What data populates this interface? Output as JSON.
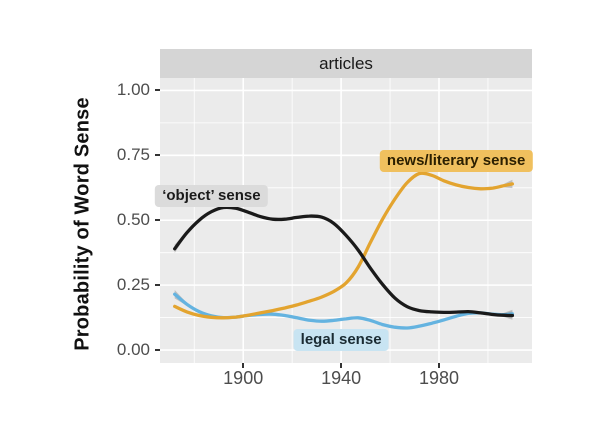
{
  "figure": {
    "facet_title": "articles",
    "y_axis_title": "Probability of Word Sense"
  },
  "colors": {
    "panel_bg": "#EBEBEB",
    "strip_bg": "#D5D5D5",
    "grid": "#FFFFFF",
    "tick_text": "#4D4D4D",
    "se_ribbon": "#9A9A9A"
  },
  "chart_data": {
    "type": "line",
    "title": "articles",
    "xlabel": "",
    "ylabel": "Probability of Word Sense",
    "xlim": [
      1866,
      2018
    ],
    "ylim": [
      -0.05,
      1.048
    ],
    "grid": "on",
    "legend": "direct-labels",
    "x_major_ticks": [
      1900,
      1940,
      1980
    ],
    "x_major_labels": [
      "1900",
      "1940",
      "1980"
    ],
    "x_minor_ticks": [
      1880,
      1920,
      1960,
      2000
    ],
    "y_major_ticks": [
      0,
      0.25,
      0.5,
      0.75,
      1.0
    ],
    "y_major_labels": [
      "0.00",
      "0.25",
      "0.50",
      "0.75",
      "1.00"
    ],
    "y_minor_ticks": [
      0.125,
      0.375,
      0.625,
      0.875
    ],
    "series": [
      {
        "name": "legal sense",
        "color": "#64B3E0",
        "se_start": true,
        "se_end": true,
        "points": [
          [
            1872,
            0.215
          ],
          [
            1877,
            0.176
          ],
          [
            1882,
            0.148
          ],
          [
            1887,
            0.132
          ],
          [
            1892,
            0.125
          ],
          [
            1897,
            0.127
          ],
          [
            1902,
            0.133
          ],
          [
            1907,
            0.137
          ],
          [
            1912,
            0.138
          ],
          [
            1917,
            0.133
          ],
          [
            1922,
            0.124
          ],
          [
            1927,
            0.115
          ],
          [
            1932,
            0.111
          ],
          [
            1937,
            0.114
          ],
          [
            1942,
            0.12
          ],
          [
            1947,
            0.124
          ],
          [
            1952,
            0.114
          ],
          [
            1957,
            0.098
          ],
          [
            1962,
            0.088
          ],
          [
            1967,
            0.085
          ],
          [
            1972,
            0.092
          ],
          [
            1977,
            0.103
          ],
          [
            1982,
            0.116
          ],
          [
            1987,
            0.13
          ],
          [
            1992,
            0.141
          ],
          [
            1997,
            0.143
          ],
          [
            2002,
            0.138
          ],
          [
            2006,
            0.136
          ],
          [
            2010,
            0.139
          ]
        ]
      },
      {
        "name": "news/literary sense",
        "color": "#E3A42F",
        "se_start": false,
        "se_end": true,
        "points": [
          [
            1872,
            0.168
          ],
          [
            1877,
            0.147
          ],
          [
            1882,
            0.133
          ],
          [
            1887,
            0.126
          ],
          [
            1892,
            0.124
          ],
          [
            1897,
            0.127
          ],
          [
            1902,
            0.134
          ],
          [
            1907,
            0.143
          ],
          [
            1912,
            0.152
          ],
          [
            1917,
            0.162
          ],
          [
            1922,
            0.174
          ],
          [
            1927,
            0.188
          ],
          [
            1932,
            0.204
          ],
          [
            1937,
            0.226
          ],
          [
            1942,
            0.258
          ],
          [
            1947,
            0.32
          ],
          [
            1952,
            0.415
          ],
          [
            1957,
            0.505
          ],
          [
            1962,
            0.582
          ],
          [
            1967,
            0.645
          ],
          [
            1972,
            0.68
          ],
          [
            1977,
            0.673
          ],
          [
            1982,
            0.652
          ],
          [
            1987,
            0.636
          ],
          [
            1992,
            0.626
          ],
          [
            1997,
            0.621
          ],
          [
            2002,
            0.624
          ],
          [
            2006,
            0.632
          ],
          [
            2010,
            0.64
          ]
        ]
      },
      {
        "name": "'object' sense",
        "color": "#1A1A1A",
        "se_start": true,
        "se_end": true,
        "points": [
          [
            1872,
            0.39
          ],
          [
            1877,
            0.452
          ],
          [
            1882,
            0.5
          ],
          [
            1887,
            0.533
          ],
          [
            1892,
            0.549
          ],
          [
            1897,
            0.546
          ],
          [
            1902,
            0.531
          ],
          [
            1907,
            0.514
          ],
          [
            1912,
            0.504
          ],
          [
            1917,
            0.504
          ],
          [
            1922,
            0.511
          ],
          [
            1927,
            0.516
          ],
          [
            1932,
            0.512
          ],
          [
            1937,
            0.488
          ],
          [
            1942,
            0.442
          ],
          [
            1947,
            0.385
          ],
          [
            1952,
            0.315
          ],
          [
            1957,
            0.252
          ],
          [
            1962,
            0.2
          ],
          [
            1967,
            0.167
          ],
          [
            1972,
            0.152
          ],
          [
            1977,
            0.147
          ],
          [
            1982,
            0.145
          ],
          [
            1987,
            0.146
          ],
          [
            1992,
            0.148
          ],
          [
            1997,
            0.143
          ],
          [
            2002,
            0.137
          ],
          [
            2006,
            0.134
          ],
          [
            2010,
            0.133
          ]
        ]
      }
    ],
    "annotations": [
      {
        "text": "‘object’ sense",
        "x": 1887,
        "y": 0.593,
        "bg": "#DBDBDB",
        "fg": "#1A1A1A"
      },
      {
        "text": "news/literary sense",
        "x": 1987,
        "y": 0.73,
        "bg": "#F0C05E",
        "fg": "#2B1F00"
      },
      {
        "text": "legal sense",
        "x": 1940,
        "y": 0.039,
        "bg": "#C8E4F2",
        "fg": "#1A2B33"
      }
    ]
  }
}
